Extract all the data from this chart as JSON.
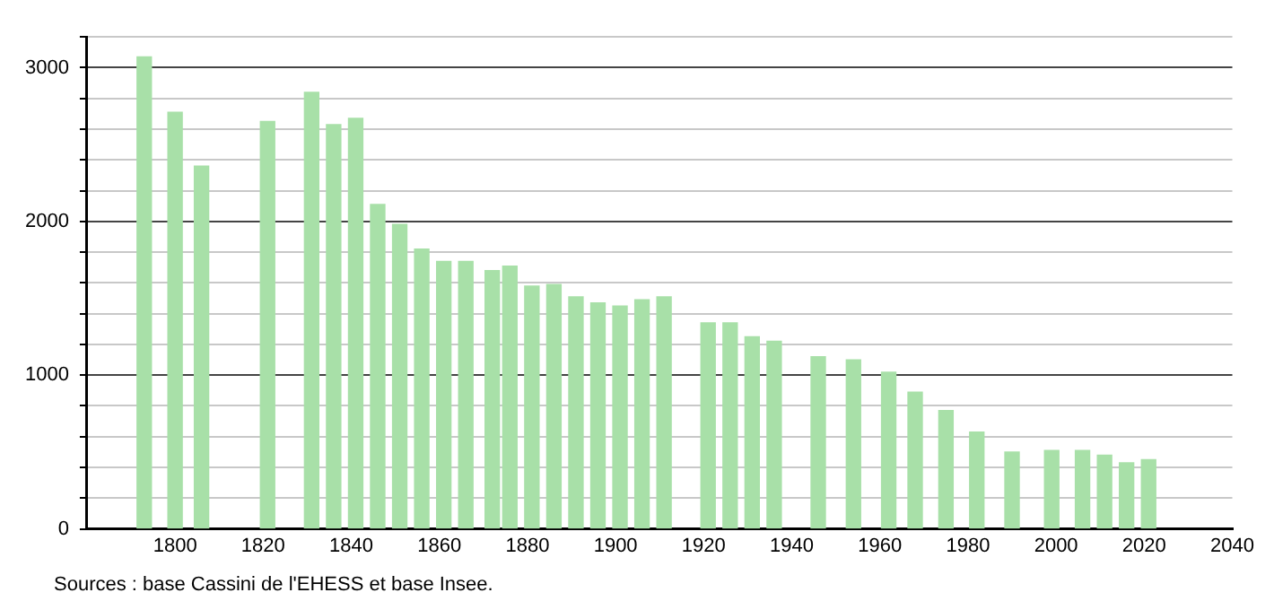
{
  "chart_data": {
    "type": "bar",
    "x": [
      1793,
      1800,
      1806,
      1821,
      1831,
      1836,
      1841,
      1846,
      1851,
      1856,
      1861,
      1866,
      1872,
      1876,
      1881,
      1886,
      1891,
      1896,
      1901,
      1906,
      1911,
      1921,
      1926,
      1931,
      1936,
      1946,
      1954,
      1962,
      1968,
      1975,
      1982,
      1990,
      1999,
      2006,
      2011,
      2016,
      2021
    ],
    "values": [
      3070,
      2710,
      2360,
      2650,
      2840,
      2630,
      2670,
      2110,
      1980,
      1820,
      1740,
      1740,
      1680,
      1710,
      1580,
      1590,
      1510,
      1470,
      1450,
      1490,
      1510,
      1340,
      1340,
      1250,
      1220,
      1120,
      1100,
      1020,
      890,
      770,
      630,
      500,
      510,
      510,
      480,
      430,
      450
    ],
    "color": "#a8e0a8",
    "xlim": [
      1780,
      2040
    ],
    "xticks": [
      1800,
      1820,
      1840,
      1860,
      1880,
      1900,
      1920,
      1940,
      1960,
      1980,
      2000,
      2020,
      2040
    ],
    "ylim": [
      0,
      3200
    ],
    "yticks": [
      0,
      {
        "value": 200,
        "label": null
      },
      {
        "value": 400,
        "label": null
      },
      {
        "value": 600,
        "label": null
      },
      {
        "value": 800,
        "label": null
      },
      1000,
      {
        "value": 1200,
        "label": null
      },
      {
        "value": 1400,
        "label": null
      },
      {
        "value": 1600,
        "label": null
      },
      {
        "value": 1800,
        "label": null
      },
      2000,
      {
        "value": 2200,
        "label": null
      },
      {
        "value": 2400,
        "label": null
      },
      {
        "value": 2600,
        "label": null
      },
      {
        "value": 2800,
        "label": null
      },
      3000,
      {
        "value": 3200,
        "label": null
      }
    ],
    "grid": "y",
    "legend": false,
    "annotations": [
      "Sources : base Cassini de l'EHESS et base Insee."
    ]
  }
}
